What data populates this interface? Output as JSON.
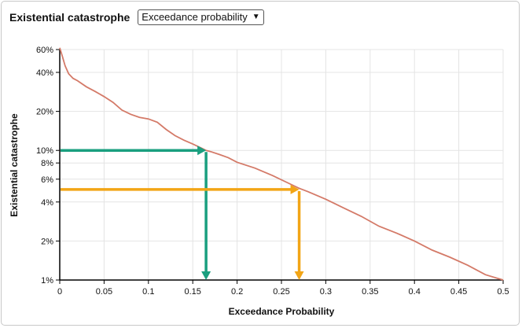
{
  "header": {
    "title": "Existential catastrophe",
    "select_value": "Exceedance probability"
  },
  "colors": {
    "curve": "#d47a68",
    "green": "#1a9f7f",
    "orange": "#f2a516",
    "grid": "#e4e4e4"
  },
  "chart_data": {
    "type": "line",
    "title": "",
    "xlabel": "Exceedance Probability",
    "ylabel": "Existential catastrophe",
    "xlim": [
      0,
      0.5
    ],
    "ylim": [
      0.01,
      0.6
    ],
    "yscale": "log",
    "grid": true,
    "x_ticks": [
      {
        "v": 0,
        "label": "0"
      },
      {
        "v": 0.05,
        "label": "0.05"
      },
      {
        "v": 0.1,
        "label": "0.1"
      },
      {
        "v": 0.15,
        "label": "0.15"
      },
      {
        "v": 0.2,
        "label": "0.2"
      },
      {
        "v": 0.25,
        "label": "0.25"
      },
      {
        "v": 0.3,
        "label": "0.3"
      },
      {
        "v": 0.35,
        "label": "0.35"
      },
      {
        "v": 0.4,
        "label": "0.4"
      },
      {
        "v": 0.45,
        "label": "0.45"
      },
      {
        "v": 0.5,
        "label": "0.5"
      }
    ],
    "y_ticks": [
      {
        "v": 0.01,
        "label": "1%"
      },
      {
        "v": 0.02,
        "label": "2%"
      },
      {
        "v": 0.04,
        "label": "4%"
      },
      {
        "v": 0.06,
        "label": "6%"
      },
      {
        "v": 0.08,
        "label": "8%"
      },
      {
        "v": 0.1,
        "label": "10%"
      },
      {
        "v": 0.2,
        "label": "20%"
      },
      {
        "v": 0.4,
        "label": "40%"
      },
      {
        "v": 0.6,
        "label": "60%"
      }
    ],
    "series": [
      {
        "x": [
          0.0,
          0.003,
          0.006,
          0.01,
          0.015,
          0.02,
          0.03,
          0.04,
          0.05,
          0.06,
          0.07,
          0.08,
          0.09,
          0.1,
          0.11,
          0.12,
          0.13,
          0.14,
          0.15,
          0.16,
          0.165,
          0.17,
          0.18,
          0.19,
          0.2,
          0.22,
          0.24,
          0.26,
          0.27,
          0.28,
          0.3,
          0.32,
          0.34,
          0.36,
          0.38,
          0.4,
          0.42,
          0.44,
          0.46,
          0.48,
          0.5
        ],
        "y": [
          0.62,
          0.53,
          0.45,
          0.39,
          0.36,
          0.345,
          0.31,
          0.285,
          0.26,
          0.235,
          0.205,
          0.19,
          0.18,
          0.175,
          0.165,
          0.145,
          0.13,
          0.12,
          0.112,
          0.104,
          0.1,
          0.098,
          0.093,
          0.088,
          0.081,
          0.073,
          0.064,
          0.055,
          0.051,
          0.048,
          0.042,
          0.036,
          0.031,
          0.026,
          0.023,
          0.02,
          0.017,
          0.015,
          0.013,
          0.011,
          0.0098
        ]
      }
    ],
    "annotations": [
      {
        "color": "green",
        "x": 0.165,
        "y": 0.1
      },
      {
        "color": "orange",
        "x": 0.27,
        "y": 0.05
      }
    ]
  }
}
